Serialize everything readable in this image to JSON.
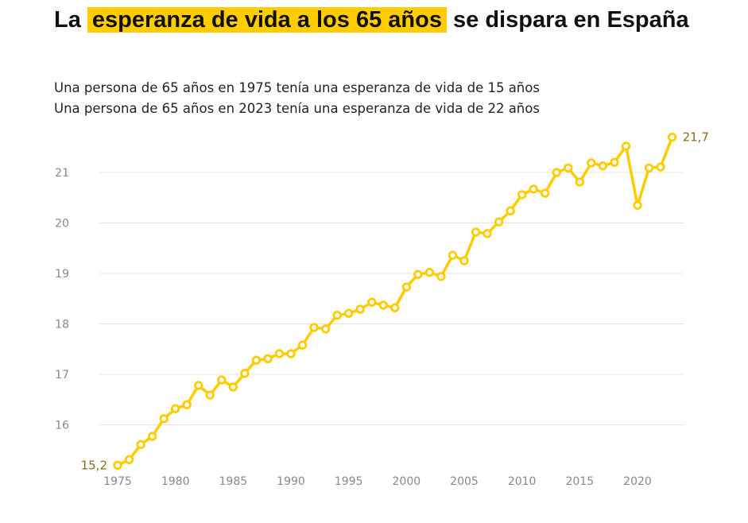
{
  "title": {
    "before": "La",
    "highlight": "esperanza de vida a los 65 años",
    "after": "se dispara en España"
  },
  "subtitle": [
    "Una persona de 65 años en 1975 tenía una esperanza de vida de 15 años",
    "Una persona de 65 años en 2023 tenía una esperanza de vida de 22 años"
  ],
  "colors": {
    "line": "#FFCC00",
    "highlight": "#FFCC00",
    "label": "#8a6d1a"
  },
  "chart_data": {
    "type": "line",
    "title": "",
    "xlabel": "",
    "ylabel": "",
    "xlim": [
      1975,
      2023
    ],
    "ylim": [
      15,
      21.8
    ],
    "grid": true,
    "x_ticks": [
      1975,
      1980,
      1985,
      1990,
      1995,
      2000,
      2005,
      2010,
      2015,
      2020
    ],
    "y_ticks": [
      16,
      17,
      18,
      19,
      20,
      21
    ],
    "x": [
      1975,
      1976,
      1977,
      1978,
      1979,
      1980,
      1981,
      1982,
      1983,
      1984,
      1985,
      1986,
      1987,
      1988,
      1989,
      1990,
      1991,
      1992,
      1993,
      1994,
      1995,
      1996,
      1997,
      1998,
      1999,
      2000,
      2001,
      2002,
      2003,
      2004,
      2005,
      2006,
      2007,
      2008,
      2009,
      2010,
      2011,
      2012,
      2013,
      2014,
      2015,
      2016,
      2017,
      2018,
      2019,
      2020,
      2021,
      2022,
      2023
    ],
    "values": [
      15.2,
      15.31,
      15.61,
      15.77,
      16.12,
      16.32,
      16.4,
      16.78,
      16.59,
      16.89,
      16.75,
      17.02,
      17.28,
      17.31,
      17.41,
      17.41,
      17.58,
      17.93,
      17.9,
      18.17,
      18.21,
      18.29,
      18.43,
      18.37,
      18.32,
      18.73,
      18.98,
      19.02,
      18.94,
      19.36,
      19.25,
      19.82,
      19.79,
      20.02,
      20.24,
      20.56,
      20.67,
      20.59,
      21.0,
      21.09,
      20.81,
      21.19,
      21.13,
      21.2,
      21.52,
      20.35,
      21.09,
      21.11,
      21.7
    ],
    "annotations": [
      {
        "x": 1975,
        "text": "15,2"
      },
      {
        "x": 2023,
        "text": "21,7"
      }
    ]
  }
}
